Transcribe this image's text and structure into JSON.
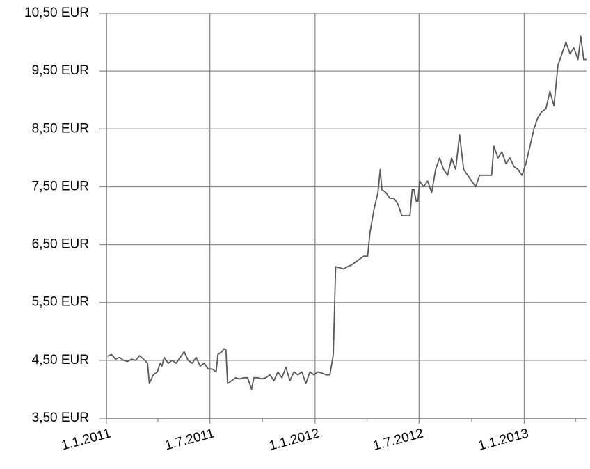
{
  "chart_data": {
    "type": "line",
    "x": [
      "2011-01-03",
      "2011-01-10",
      "2011-01-17",
      "2011-01-24",
      "2011-01-31",
      "2011-02-07",
      "2011-02-14",
      "2011-02-21",
      "2011-02-28",
      "2011-03-07",
      "2011-03-14",
      "2011-03-17",
      "2011-03-24",
      "2011-03-31",
      "2011-04-05",
      "2011-04-08",
      "2011-04-12",
      "2011-04-19",
      "2011-04-26",
      "2011-05-03",
      "2011-05-10",
      "2011-05-17",
      "2011-05-24",
      "2011-05-31",
      "2011-06-07",
      "2011-06-14",
      "2011-06-21",
      "2011-06-28",
      "2011-07-05",
      "2011-07-12",
      "2011-07-15",
      "2011-07-22",
      "2011-07-26",
      "2011-07-29",
      "2011-08-01",
      "2011-08-08",
      "2011-08-15",
      "2011-08-22",
      "2011-08-29",
      "2011-09-05",
      "2011-09-12",
      "2011-09-16",
      "2011-09-23",
      "2011-09-30",
      "2011-10-07",
      "2011-10-14",
      "2011-10-21",
      "2011-10-28",
      "2011-11-04",
      "2011-11-11",
      "2011-11-18",
      "2011-11-25",
      "2011-12-02",
      "2011-12-09",
      "2011-12-16",
      "2011-12-23",
      "2011-12-30",
      "2012-01-06",
      "2012-01-13",
      "2012-01-20",
      "2012-01-27",
      "2012-02-02",
      "2012-02-06",
      "2012-02-13",
      "2012-02-20",
      "2012-02-27",
      "2012-03-05",
      "2012-03-12",
      "2012-03-19",
      "2012-03-26",
      "2012-04-02",
      "2012-04-06",
      "2012-04-13",
      "2012-04-20",
      "2012-04-24",
      "2012-04-27",
      "2012-05-04",
      "2012-05-11",
      "2012-05-18",
      "2012-05-25",
      "2012-06-01",
      "2012-06-08",
      "2012-06-15",
      "2012-06-19",
      "2012-06-22",
      "2012-06-26",
      "2012-06-29",
      "2012-07-02",
      "2012-07-09",
      "2012-07-16",
      "2012-07-23",
      "2012-07-30",
      "2012-08-06",
      "2012-08-13",
      "2012-08-20",
      "2012-08-27",
      "2012-09-03",
      "2012-09-10",
      "2012-09-17",
      "2012-09-24",
      "2012-10-01",
      "2012-10-08",
      "2012-10-15",
      "2012-10-22",
      "2012-10-29",
      "2012-11-05",
      "2012-11-09",
      "2012-11-16",
      "2012-11-23",
      "2012-11-30",
      "2012-12-07",
      "2012-12-14",
      "2012-12-21",
      "2012-12-28",
      "2013-01-04",
      "2013-01-11",
      "2013-01-18",
      "2013-01-25",
      "2013-02-01",
      "2013-02-08",
      "2013-02-15",
      "2013-02-22",
      "2013-03-01",
      "2013-03-08",
      "2013-03-15",
      "2013-03-22",
      "2013-03-29",
      "2013-04-05",
      "2013-04-10",
      "2013-04-15",
      "2013-04-20"
    ],
    "series": [
      {
        "color": "#595959",
        "values": [
          4.57,
          4.6,
          4.52,
          4.55,
          4.5,
          4.48,
          4.52,
          4.5,
          4.58,
          4.52,
          4.45,
          4.1,
          4.25,
          4.3,
          4.45,
          4.4,
          4.55,
          4.45,
          4.5,
          4.45,
          4.55,
          4.65,
          4.5,
          4.45,
          4.55,
          4.4,
          4.45,
          4.35,
          4.35,
          4.3,
          4.6,
          4.65,
          4.7,
          4.68,
          4.1,
          4.15,
          4.2,
          4.18,
          4.2,
          4.2,
          4.0,
          4.2,
          4.2,
          4.18,
          4.2,
          4.25,
          4.15,
          4.3,
          4.2,
          4.38,
          4.15,
          4.3,
          4.25,
          4.3,
          4.1,
          4.3,
          4.25,
          4.3,
          4.28,
          4.25,
          4.25,
          4.6,
          6.12,
          6.1,
          6.08,
          6.12,
          6.15,
          6.2,
          6.25,
          6.3,
          6.3,
          6.7,
          7.1,
          7.4,
          7.8,
          7.45,
          7.4,
          7.3,
          7.3,
          7.2,
          7.0,
          7.0,
          7.0,
          7.45,
          7.45,
          7.25,
          7.25,
          7.6,
          7.5,
          7.6,
          7.4,
          7.8,
          8.0,
          7.8,
          7.7,
          8.0,
          7.8,
          8.4,
          7.8,
          7.7,
          7.6,
          7.5,
          7.7,
          7.7,
          7.7,
          7.7,
          8.2,
          8.0,
          8.1,
          7.9,
          8.0,
          7.85,
          7.8,
          7.7,
          7.9,
          8.2,
          8.5,
          8.7,
          8.8,
          8.85,
          9.15,
          8.9,
          9.6,
          9.8,
          10.0,
          9.8,
          9.9,
          9.7,
          10.1,
          9.7,
          9.7
        ]
      }
    ],
    "xlim": [
      "2011-01-01",
      "2013-04-20"
    ],
    "xticks": [
      {
        "value": "2011-01-01",
        "label": "1.1.2011"
      },
      {
        "value": "2011-07-01",
        "label": "1.7.2011"
      },
      {
        "value": "2012-01-01",
        "label": "1.1.2012"
      },
      {
        "value": "2012-07-01",
        "label": "1.7.2012"
      },
      {
        "value": "2013-01-01",
        "label": "1.1.2013"
      }
    ],
    "xminor_ticks": [
      "2011-04-01",
      "2011-10-01",
      "2012-04-01",
      "2012-10-01",
      "2013-04-01"
    ],
    "ylim": [
      3.5,
      10.5
    ],
    "yticks": [
      {
        "value": 3.5,
        "label": "3,50 EUR"
      },
      {
        "value": 4.5,
        "label": "4,50 EUR"
      },
      {
        "value": 5.5,
        "label": "5,50 EUR"
      },
      {
        "value": 6.5,
        "label": "6,50 EUR"
      },
      {
        "value": 7.5,
        "label": "7,50 EUR"
      },
      {
        "value": 8.5,
        "label": "8,50 EUR"
      },
      {
        "value": 9.5,
        "label": "9,50 EUR"
      },
      {
        "value": 10.5,
        "label": "10,50 EUR"
      }
    ],
    "grid": true
  }
}
